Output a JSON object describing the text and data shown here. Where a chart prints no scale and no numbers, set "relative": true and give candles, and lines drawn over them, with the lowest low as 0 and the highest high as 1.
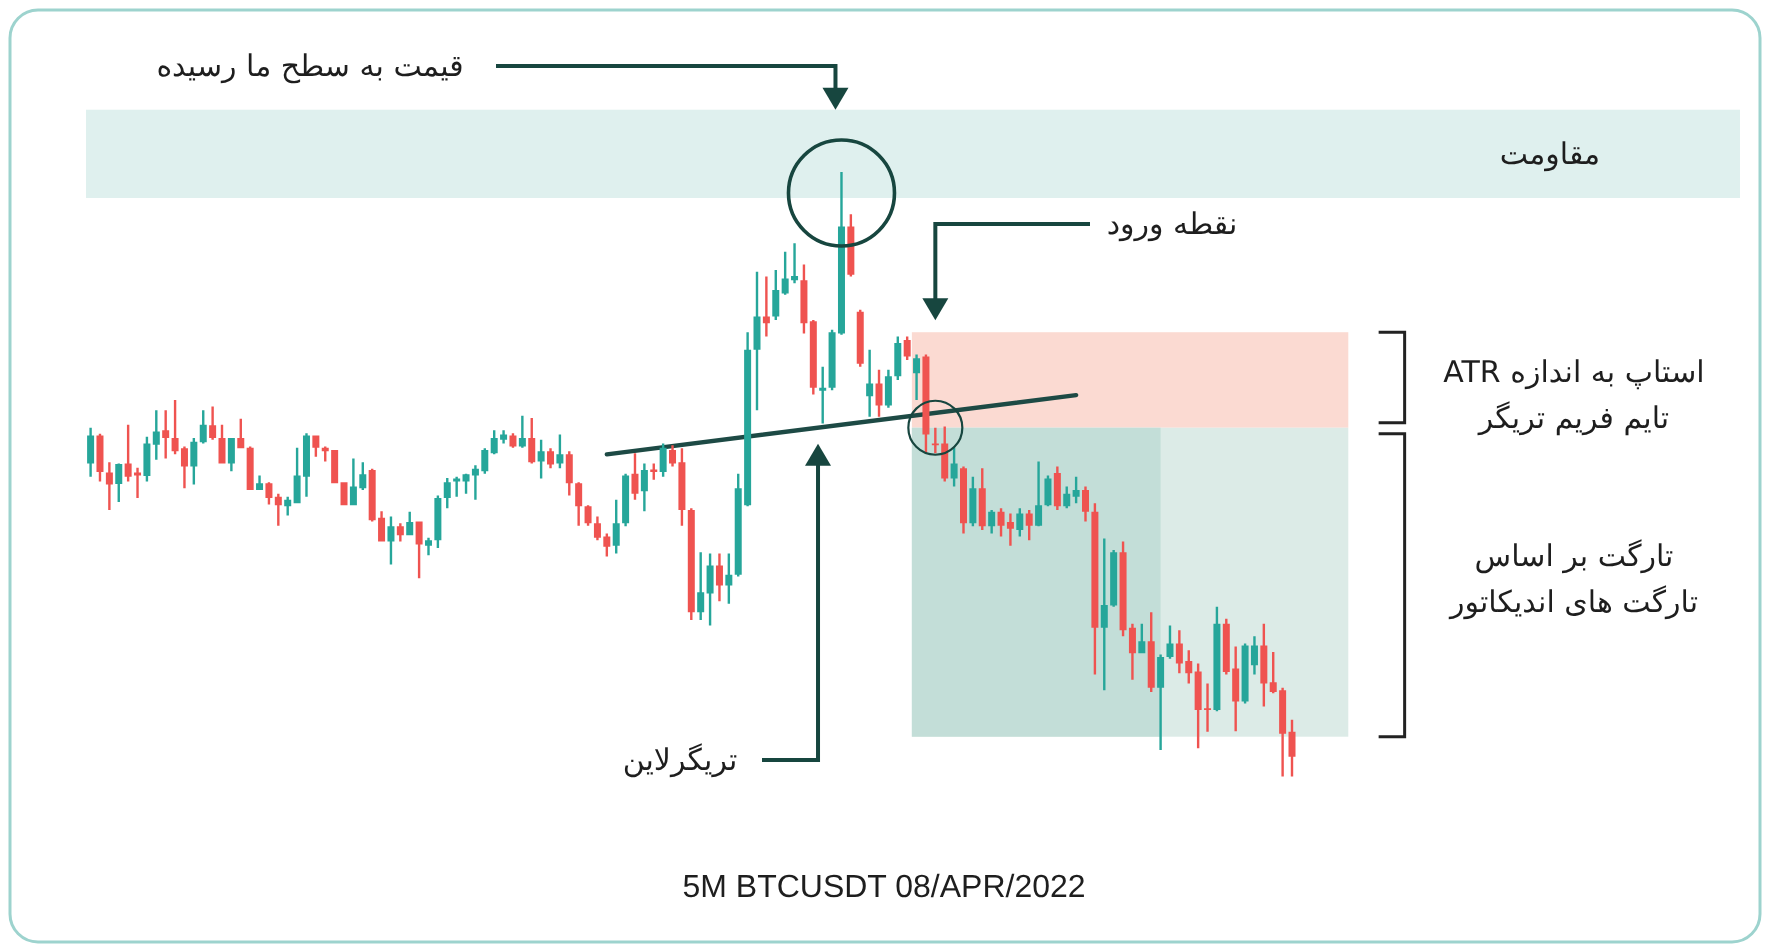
{
  "chart_data": {
    "type": "candlestick",
    "relative": true,
    "categories": [
      null,
      null,
      null,
      null,
      null,
      null,
      null,
      null,
      null,
      null,
      null,
      null,
      null,
      null,
      null,
      null,
      null,
      null,
      null,
      null,
      null,
      null,
      null,
      null,
      null,
      null,
      null,
      null,
      null,
      null,
      null,
      null,
      null,
      null,
      null,
      null,
      null,
      null,
      null,
      null,
      null,
      null,
      null,
      null,
      null,
      null,
      null,
      null,
      null,
      null,
      null,
      null,
      null,
      null,
      null,
      null,
      null,
      null,
      null,
      null,
      null,
      null,
      null,
      null,
      null,
      null,
      null,
      null,
      null,
      null,
      null,
      null,
      null,
      null,
      null,
      null,
      null,
      null,
      null,
      null,
      null,
      null,
      null,
      null,
      null,
      null,
      null,
      null,
      null,
      null,
      null,
      null,
      null,
      null,
      null,
      null,
      null,
      null,
      null,
      null,
      null,
      null,
      null,
      null,
      null,
      null,
      null,
      null,
      null,
      null,
      null,
      null,
      null,
      null,
      null,
      null,
      null,
      null,
      null,
      null,
      null,
      null,
      null,
      null,
      null,
      null,
      null,
      null,
      null
    ],
    "ohlc": [
      [
        0.518,
        0.577,
        0.496,
        0.564
      ],
      [
        0.564,
        0.567,
        0.488,
        0.504
      ],
      [
        0.503,
        0.52,
        0.441,
        0.483
      ],
      [
        0.484,
        0.518,
        0.454,
        0.517
      ],
      [
        0.518,
        0.582,
        0.488,
        0.496
      ],
      [
        0.503,
        0.511,
        0.461,
        0.498
      ],
      [
        0.497,
        0.562,
        0.488,
        0.551
      ],
      [
        0.549,
        0.606,
        0.524,
        0.571
      ],
      [
        0.573,
        0.606,
        0.526,
        0.56
      ],
      [
        0.56,
        0.623,
        0.533,
        0.538
      ],
      [
        0.543,
        0.546,
        0.477,
        0.513
      ],
      [
        0.513,
        0.56,
        0.483,
        0.554
      ],
      [
        0.553,
        0.606,
        0.551,
        0.582
      ],
      [
        0.581,
        0.612,
        0.557,
        0.56
      ],
      [
        0.56,
        0.582,
        0.518,
        0.518
      ],
      [
        0.518,
        0.56,
        0.505,
        0.56
      ],
      [
        0.56,
        0.592,
        0.543,
        0.543
      ],
      [
        0.544,
        0.546,
        0.474,
        0.474
      ],
      [
        0.474,
        0.498,
        0.474,
        0.485
      ],
      [
        0.485,
        0.487,
        0.45,
        0.461
      ],
      [
        0.463,
        0.468,
        0.415,
        0.449
      ],
      [
        0.447,
        0.463,
        0.432,
        0.458
      ],
      [
        0.452,
        0.544,
        0.452,
        0.498
      ],
      [
        0.496,
        0.568,
        0.463,
        0.564
      ],
      [
        0.564,
        0.564,
        0.529,
        0.544
      ],
      [
        0.544,
        0.546,
        0.521,
        0.538
      ],
      [
        0.54,
        0.54,
        0.485,
        0.485
      ],
      [
        0.487,
        0.487,
        0.449,
        0.449
      ],
      [
        0.449,
        0.526,
        0.449,
        0.48
      ],
      [
        0.477,
        0.52,
        0.474,
        0.5
      ],
      [
        0.507,
        0.509,
        0.422,
        0.424
      ],
      [
        0.428,
        0.439,
        0.389,
        0.389
      ],
      [
        0.389,
        0.43,
        0.351,
        0.414
      ],
      [
        0.414,
        0.419,
        0.389,
        0.399
      ],
      [
        0.399,
        0.438,
        0.399,
        0.421
      ],
      [
        0.422,
        0.422,
        0.328,
        0.384
      ],
      [
        0.382,
        0.395,
        0.366,
        0.391
      ],
      [
        0.391,
        0.465,
        0.378,
        0.461
      ],
      [
        0.461,
        0.494,
        0.444,
        0.487
      ],
      [
        0.488,
        0.496,
        0.463,
        0.493
      ],
      [
        0.488,
        0.501,
        0.468,
        0.5
      ],
      [
        0.498,
        0.515,
        0.458,
        0.509
      ],
      [
        0.505,
        0.543,
        0.501,
        0.54
      ],
      [
        0.535,
        0.573,
        0.533,
        0.56
      ],
      [
        0.557,
        0.573,
        0.551,
        0.566
      ],
      [
        0.564,
        0.568,
        0.544,
        0.546
      ],
      [
        0.546,
        0.597,
        0.544,
        0.56
      ],
      [
        0.56,
        0.593,
        0.518,
        0.52
      ],
      [
        0.521,
        0.557,
        0.493,
        0.538
      ],
      [
        0.538,
        0.543,
        0.51,
        0.516
      ],
      [
        0.518,
        0.566,
        0.51,
        0.533
      ],
      [
        0.533,
        0.538,
        0.465,
        0.485
      ],
      [
        0.485,
        0.487,
        0.415,
        0.447
      ],
      [
        0.447,
        0.449,
        0.415,
        0.419
      ],
      [
        0.419,
        0.43,
        0.391,
        0.395
      ],
      [
        0.397,
        0.402,
        0.364,
        0.38
      ],
      [
        0.382,
        0.458,
        0.369,
        0.419
      ],
      [
        0.419,
        0.501,
        0.414,
        0.498
      ],
      [
        0.501,
        0.535,
        0.458,
        0.468
      ],
      [
        0.472,
        0.518,
        0.439,
        0.507
      ],
      [
        0.508,
        0.518,
        0.491,
        0.504
      ],
      [
        0.504,
        0.551,
        0.496,
        0.544
      ],
      [
        0.54,
        0.548,
        0.513,
        0.518
      ],
      [
        0.52,
        0.543,
        0.415,
        0.441
      ],
      [
        0.441,
        0.444,
        0.259,
        0.272
      ],
      [
        0.272,
        0.371,
        0.259,
        0.305
      ],
      [
        0.303,
        0.369,
        0.25,
        0.349
      ],
      [
        0.349,
        0.369,
        0.29,
        0.316
      ],
      [
        0.316,
        0.369,
        0.286,
        0.334
      ],
      [
        0.334,
        0.501,
        0.331,
        0.477
      ],
      [
        0.449,
        0.735,
        0.447,
        0.706
      ],
      [
        0.706,
        0.835,
        0.606,
        0.761
      ],
      [
        0.761,
        0.827,
        0.728,
        0.75
      ],
      [
        0.761,
        0.838,
        0.755,
        0.805
      ],
      [
        0.799,
        0.868,
        0.797,
        0.824
      ],
      [
        0.821,
        0.882,
        0.816,
        0.828
      ],
      [
        0.821,
        0.847,
        0.733,
        0.75
      ],
      [
        0.753,
        0.755,
        0.632,
        0.643
      ],
      [
        0.638,
        0.678,
        0.584,
        0.643
      ],
      [
        0.643,
        0.739,
        0.639,
        0.735
      ],
      [
        0.733,
        1.0,
        0.731,
        0.91
      ],
      [
        0.91,
        0.93,
        0.827,
        0.83
      ],
      [
        0.769,
        0.772,
        0.678,
        0.683
      ],
      [
        0.629,
        0.706,
        0.595,
        0.65
      ],
      [
        0.65,
        0.673,
        0.595,
        0.614
      ],
      [
        0.614,
        0.673,
        0.61,
        0.662
      ],
      [
        0.662,
        0.728,
        0.656,
        0.717
      ],
      [
        0.722,
        0.728,
        0.689,
        0.695
      ],
      [
        0.667,
        0.698,
        0.623,
        0.692
      ],
      [
        0.695,
        0.698,
        0.535,
        0.566
      ],
      [
        0.551,
        0.577,
        0.535,
        0.548
      ],
      [
        0.551,
        0.579,
        0.488,
        0.493
      ],
      [
        0.493,
        0.544,
        0.48,
        0.518
      ],
      [
        0.51,
        0.513,
        0.402,
        0.419
      ],
      [
        0.419,
        0.496,
        0.414,
        0.477
      ],
      [
        0.477,
        0.51,
        0.408,
        0.414
      ],
      [
        0.414,
        0.441,
        0.402,
        0.438
      ],
      [
        0.438,
        0.444,
        0.397,
        0.415
      ],
      [
        0.421,
        0.435,
        0.382,
        0.41
      ],
      [
        0.408,
        0.444,
        0.397,
        0.435
      ],
      [
        0.435,
        0.441,
        0.391,
        0.415
      ],
      [
        0.415,
        0.521,
        0.414,
        0.449
      ],
      [
        0.449,
        0.498,
        0.447,
        0.493
      ],
      [
        0.502,
        0.513,
        0.441,
        0.447
      ],
      [
        0.447,
        0.48,
        0.444,
        0.468
      ],
      [
        0.463,
        0.496,
        0.452,
        0.474
      ],
      [
        0.474,
        0.48,
        0.422,
        0.438
      ],
      [
        0.438,
        0.452,
        0.169,
        0.246
      ],
      [
        0.246,
        0.394,
        0.143,
        0.284
      ],
      [
        0.283,
        0.375,
        0.281,
        0.371
      ],
      [
        0.371,
        0.389,
        0.232,
        0.242
      ],
      [
        0.246,
        0.253,
        0.16,
        0.204
      ],
      [
        0.204,
        0.253,
        0.204,
        0.224
      ],
      [
        0.224,
        0.272,
        0.14,
        0.147
      ],
      [
        0.147,
        0.202,
        0.044,
        0.198
      ],
      [
        0.198,
        0.25,
        0.195,
        0.22
      ],
      [
        0.22,
        0.242,
        0.171,
        0.187
      ],
      [
        0.191,
        0.209,
        0.154,
        0.171
      ],
      [
        0.174,
        0.187,
        0.047,
        0.11
      ],
      [
        0.113,
        0.154,
        0.074,
        0.11
      ],
      [
        0.11,
        0.281,
        0.108,
        0.253
      ],
      [
        0.253,
        0.261,
        0.169,
        0.173
      ],
      [
        0.179,
        0.215,
        0.075,
        0.124
      ],
      [
        0.124,
        0.22,
        0.121,
        0.217
      ],
      [
        0.184,
        0.232,
        0.169,
        0.217
      ],
      [
        0.217,
        0.253,
        0.116,
        0.154
      ],
      [
        0.156,
        0.206,
        0.138,
        0.14
      ],
      [
        0.143,
        0.147,
        0.0,
        0.071
      ],
      [
        0.074,
        0.094,
        0.0,
        0.033
      ]
    ],
    "colors": [
      "#26a69a",
      "#ef5350",
      "#ef5350",
      "#26a69a",
      "#ef5350",
      "#ef5350",
      "#26a69a",
      "#26a69a",
      "#ef5350",
      "#ef5350",
      "#ef5350",
      "#26a69a",
      "#26a69a",
      "#ef5350",
      "#ef5350",
      "#26a69a",
      "#ef5350",
      "#ef5350",
      "#26a69a",
      "#ef5350",
      "#ef5350",
      "#26a69a",
      "#26a69a",
      "#26a69a",
      "#ef5350",
      "#ef5350",
      "#ef5350",
      "#ef5350",
      "#26a69a",
      "#26a69a",
      "#ef5350",
      "#ef5350",
      "#26a69a",
      "#ef5350",
      "#26a69a",
      "#ef5350",
      "#26a69a",
      "#26a69a",
      "#26a69a",
      "#26a69a",
      "#26a69a",
      "#26a69a",
      "#26a69a",
      "#26a69a",
      "#26a69a",
      "#ef5350",
      "#26a69a",
      "#ef5350",
      "#26a69a",
      "#ef5350",
      "#26a69a",
      "#ef5350",
      "#ef5350",
      "#ef5350",
      "#ef5350",
      "#ef5350",
      "#26a69a",
      "#26a69a",
      "#ef5350",
      "#26a69a",
      "#ef5350",
      "#26a69a",
      "#ef5350",
      "#ef5350",
      "#ef5350",
      "#26a69a",
      "#26a69a",
      "#ef5350",
      "#26a69a",
      "#26a69a",
      "#26a69a",
      "#26a69a",
      "#ef5350",
      "#26a69a",
      "#26a69a",
      "#26a69a",
      "#ef5350",
      "#ef5350",
      "#26a69a",
      "#26a69a",
      "#26a69a",
      "#ef5350",
      "#ef5350",
      "#26a69a",
      "#ef5350",
      "#26a69a",
      "#26a69a",
      "#ef5350",
      "#26a69a",
      "#ef5350",
      "#ef5350",
      "#ef5350",
      "#26a69a",
      "#ef5350",
      "#26a69a",
      "#ef5350",
      "#26a69a",
      "#ef5350",
      "#ef5350",
      "#26a69a",
      "#ef5350",
      "#26a69a",
      "#26a69a",
      "#ef5350",
      "#26a69a",
      "#26a69a",
      "#ef5350",
      "#ef5350",
      "#26a69a",
      "#26a69a",
      "#ef5350",
      "#ef5350",
      "#26a69a",
      "#ef5350",
      "#26a69a",
      "#26a69a",
      "#ef5350",
      "#ef5350",
      "#ef5350",
      "#ef5350",
      "#26a69a",
      "#ef5350",
      "#ef5350",
      "#26a69a",
      "#26a69a",
      "#ef5350",
      "#ef5350",
      "#ef5350",
      "#ef5350"
    ],
    "series": [
      {
        "type": "line",
        "color": "#1d4a45",
        "values": [
          null,
          null,
          null,
          null,
          null,
          null,
          null,
          null,
          null,
          null,
          null,
          null,
          null,
          null,
          null,
          null,
          null,
          null,
          null,
          null,
          null,
          null,
          null,
          null,
          null,
          null,
          null,
          null,
          null,
          null,
          null,
          null,
          null,
          null,
          null,
          null,
          null,
          null,
          null,
          null,
          null,
          null,
          null,
          null,
          null,
          null,
          null,
          null,
          null,
          null,
          null,
          null,
          null,
          null,
          null,
          0.533,
          null,
          null,
          null,
          null,
          null,
          null,
          null,
          null,
          null,
          null,
          null,
          null,
          null,
          null,
          null,
          null,
          null,
          null,
          null,
          null,
          null,
          null,
          null,
          null,
          null,
          null,
          null,
          null,
          null,
          null,
          null,
          null,
          null,
          null,
          null,
          null,
          null,
          null,
          null,
          null,
          null,
          null,
          null,
          null,
          null,
          null,
          null,
          null,
          null,
          0.631,
          null,
          null,
          null,
          null,
          null,
          null,
          null,
          null,
          null,
          null,
          null,
          null,
          null,
          null,
          null,
          null,
          null,
          null,
          null,
          null,
          null,
          null,
          null
        ]
      }
    ],
    "bands": [
      {
        "axis": "y",
        "from": 0.957,
        "to": 1.103,
        "label": "مقاومت",
        "color": "#dff0ee"
      },
      {
        "axis": "y",
        "from": 0.577,
        "to": 0.735,
        "color": "#fbdad2"
      },
      {
        "axis": "y",
        "from": 0.066,
        "to": 0.577,
        "color": "#dcebe7"
      },
      {
        "axis": "y",
        "from": 0.066,
        "to": 0.577,
        "color": "#c3ded8"
      }
    ],
    "annotations": [
      "قیمت به سطح ما رسیده",
      "نقطه ورود",
      "استاپ به اندازه ATR",
      "تایم فریم تریگر",
      "تارگت بر اساس",
      "تارگت های اندیکاتور",
      "تریگرلاین",
      "5M BTCUSDT 08/APR/2022"
    ]
  }
}
